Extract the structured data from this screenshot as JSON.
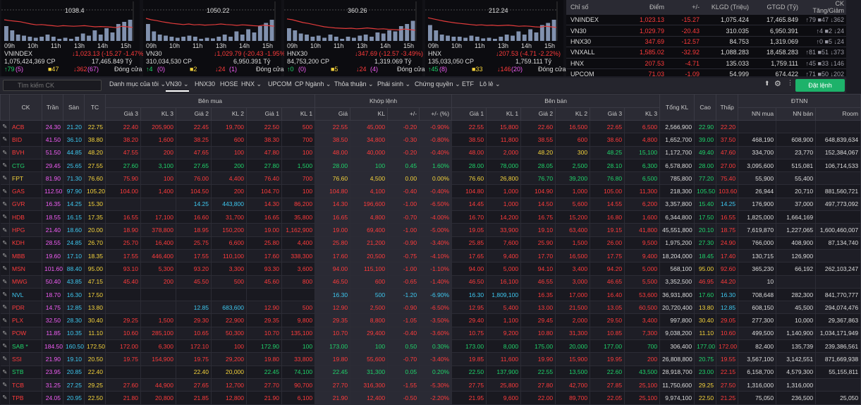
{
  "panels": [
    {
      "peak": "1038.4",
      "name": "VNINDEX",
      "value": "↓1,023.13 (-15.27 -1.47%)",
      "volume": "1,075,424,369 CP",
      "turnover": "17,465.849 Tỷ",
      "up": "↑79",
      "ceil": "(5)",
      "flat": "■47",
      "down": "↓362",
      "floor": "(67)",
      "status": "Đóng cửa",
      "times": [
        "09h",
        "10h",
        "11h",
        "13h",
        "14h",
        "15h"
      ],
      "line": [
        0.45,
        0.48,
        0.5,
        0.52,
        0.56,
        0.6,
        0.63,
        0.62,
        0.64,
        0.66,
        0.68,
        0.66,
        0.67,
        0.68,
        0.67,
        0.66,
        0.68,
        0.7,
        0.69,
        0.7,
        0.71,
        0.73,
        0.68,
        0.7,
        0.72
      ],
      "vol": [
        0.7,
        0.5,
        0.3,
        0.25,
        0.2,
        0.15,
        0.2,
        0.3,
        0.2,
        0.1,
        0.15,
        0.1,
        0.2,
        0.35,
        0.25,
        0.5,
        0.3,
        0.6,
        0.4,
        0.8,
        0.9,
        1.0
      ]
    },
    {
      "peak": "1050.22",
      "name": "VN30",
      "value": "↓1,029.79 (-20.43 -1.95%)",
      "volume": "310,034,530 CP",
      "turnover": "6,950.391 Tỷ",
      "up": "↑4",
      "ceil": "(0)",
      "flat": "■2",
      "down": "↓24",
      "floor": "(1)",
      "status": "Đóng cửa",
      "times": [
        "09h",
        "10h",
        "11h",
        "13h",
        "14h",
        "15h"
      ],
      "line": [
        0.4,
        0.45,
        0.48,
        0.52,
        0.55,
        0.58,
        0.6,
        0.62,
        0.6,
        0.63,
        0.62,
        0.64,
        0.63,
        0.62,
        0.6,
        0.62,
        0.63,
        0.65,
        0.63,
        0.64,
        0.66,
        0.67,
        0.64,
        0.66,
        0.68
      ],
      "vol": [
        0.8,
        0.45,
        0.3,
        0.25,
        0.2,
        0.15,
        0.2,
        0.25,
        0.2,
        0.1,
        0.15,
        0.12,
        0.2,
        0.3,
        0.2,
        0.45,
        0.3,
        0.55,
        0.4,
        0.7,
        0.85,
        1.0
      ]
    },
    {
      "peak": "360.26",
      "name": "HNX30",
      "value": "↓347.69 (-12.57 -3.49%)",
      "volume": "84,753,200 CP",
      "turnover": "1,319.069 Tỷ",
      "up": "↑0",
      "ceil": "(0)",
      "flat": "■5",
      "down": "↓24",
      "floor": "(4)",
      "status": "Đóng cửa",
      "times": [
        "09h",
        "10h",
        "11h",
        "13h",
        "14h",
        "15h"
      ],
      "line": [
        0.42,
        0.45,
        0.5,
        0.55,
        0.58,
        0.62,
        0.66,
        0.7,
        0.72,
        0.74,
        0.75,
        0.76,
        0.75,
        0.77,
        0.76,
        0.74,
        0.76,
        0.78,
        0.77,
        0.79,
        0.8,
        0.81,
        0.78,
        0.8,
        0.82
      ],
      "vol": [
        0.6,
        0.5,
        0.35,
        0.3,
        0.2,
        0.25,
        0.15,
        0.3,
        0.2,
        0.1,
        0.2,
        0.15,
        0.25,
        0.3,
        0.2,
        0.4,
        0.35,
        0.5,
        0.45,
        0.7,
        0.8,
        0.95
      ]
    },
    {
      "peak": "212.24",
      "name": "HNX",
      "value": "↓207.53 (-4.71 -2.22%)",
      "volume": "135,033,050 CP",
      "turnover": "1,759.111 Tỷ",
      "up": "↑45",
      "ceil": "(8)",
      "flat": "■33",
      "down": "↓146",
      "floor": "(20)",
      "status": "Đóng cửa",
      "times": [
        "09h",
        "10h",
        "11h",
        "13h",
        "14h",
        "15h"
      ],
      "line": [
        0.38,
        0.42,
        0.46,
        0.5,
        0.53,
        0.56,
        0.58,
        0.6,
        0.62,
        0.64,
        0.63,
        0.65,
        0.64,
        0.66,
        0.65,
        0.64,
        0.66,
        0.68,
        0.67,
        0.68,
        0.7,
        0.71,
        0.68,
        0.7,
        0.72
      ],
      "vol": [
        0.75,
        0.5,
        0.3,
        0.25,
        0.2,
        0.2,
        0.15,
        0.25,
        0.2,
        0.12,
        0.15,
        0.1,
        0.2,
        0.3,
        0.25,
        0.45,
        0.3,
        0.55,
        0.4,
        0.75,
        0.85,
        1.0
      ]
    }
  ],
  "summary": {
    "headers": [
      "Chỉ số",
      "Điểm",
      "+/-",
      "KLGD (Triệu)",
      "GTGD (Tỷ)",
      "CK Tăng/Giảm"
    ],
    "rows": [
      [
        "VNINDEX",
        "1,023.13",
        "-15.27",
        "1,075.424",
        "17,465.849",
        "↑79 ■47 ↓362"
      ],
      [
        "VN30",
        "1,029.79",
        "-20.43",
        "310.035",
        "6,950.391",
        "↑4 ■2 ↓24"
      ],
      [
        "HNX30",
        "347.69",
        "-12.57",
        "84.753",
        "1,319.069",
        "↑0 ■5 ↓24"
      ],
      [
        "VNXALL",
        "1,585.02",
        "-32.92",
        "1,088.283",
        "18,458.283",
        "↑81 ■51 ↓373"
      ],
      [
        "HNX",
        "207.53",
        "-4.71",
        "135.033",
        "1,759.111",
        "↑45 ■33 ↓146"
      ],
      [
        "UPCOM",
        "71.03",
        "-1.09",
        "54.999",
        "674.422",
        "↑71 ■50 ↓202"
      ]
    ]
  },
  "toolbar": {
    "search_placeholder": "Tìm kiếm CK",
    "tabs": [
      "Danh mục của tôi ⌄",
      "VN30 ⌄",
      "HNX30",
      "HOSE",
      "HNX ⌄",
      "UPCOM",
      "CP Ngành ⌄",
      "Thỏa thuận ⌄",
      "Phái sinh ⌄",
      "Chứng quyền ⌄",
      "ETF",
      "Lô lẻ ⌄"
    ],
    "order_label": "Đặt lệnh"
  },
  "board": {
    "group_headers": [
      "CK",
      "Trần",
      "Sàn",
      "TC",
      "Bên mua",
      "Khớp lệnh",
      "Bên bán",
      "Tổng KL",
      "Cao",
      "Thấp",
      "ĐTNN"
    ],
    "sub_headers": [
      "Giá 3",
      "KL 3",
      "Giá 2",
      "KL 2",
      "Giá 1",
      "KL 1",
      "Giá",
      "KL",
      "+/-",
      "+/- (%)",
      "Giá 1",
      "KL 1",
      "Giá 2",
      "KL 2",
      "Giá 3",
      "KL 3",
      "NN mua",
      "NN bán",
      "Room"
    ],
    "rows": [
      [
        "ACB",
        "24.30",
        "21.20",
        "22.75",
        "22.40",
        "205,900",
        "22.45",
        "19,700",
        "22.50",
        "500",
        "22.55",
        "45,000",
        "-0.20",
        "-0.90%",
        "22.55",
        "15,800",
        "22.60",
        "16,500",
        "22.65",
        "6,500",
        "2,566,900",
        "22.90",
        "22.20",
        "",
        "",
        ""
      ],
      [
        "BID",
        "41.50",
        "36.10",
        "38.80",
        "38.20",
        "1,600",
        "38.25",
        "600",
        "38.30",
        "700",
        "38.50",
        "34,800",
        "-0.30",
        "-0.80%",
        "38.50",
        "11,800",
        "38.55",
        "600",
        "38.60",
        "4,800",
        "1,652,700",
        "39.00",
        "37.50",
        "468,190",
        "608,900",
        "648,839,634"
      ],
      [
        "BVH",
        "51.50",
        "44.85",
        "48.20",
        "47.55",
        "200",
        "47.65",
        "100",
        "47.80",
        "100",
        "48.00",
        "40,000",
        "-0.20",
        "-0.40%",
        "48.00",
        "2,000",
        "48.20",
        "300",
        "48.25",
        "15,100",
        "1,172,700",
        "49.40",
        "47.60",
        "334,700",
        "23,770",
        "152,384,067"
      ],
      [
        "CTG",
        "29.45",
        "25.65",
        "27.55",
        "27.60",
        "3,100",
        "27.65",
        "200",
        "27.80",
        "1,500",
        "28.00",
        "100",
        "0.45",
        "1.60%",
        "28.00",
        "78,000",
        "28.05",
        "2,500",
        "28.10",
        "6,300",
        "6,578,800",
        "28.00",
        "27.00",
        "3,095,600",
        "515,081",
        "106,714,533"
      ],
      [
        "FPT",
        "81.90",
        "71.30",
        "76.60",
        "75.90",
        "100",
        "76.00",
        "4,400",
        "76.40",
        "700",
        "76.60",
        "4,500",
        "0.00",
        "0.00%",
        "76.60",
        "26,800",
        "76.70",
        "39,200",
        "76.80",
        "6,500",
        "785,800",
        "77.20",
        "75.40",
        "55,900",
        "55,400",
        ""
      ],
      [
        "GAS",
        "112.50",
        "97.90",
        "105.20",
        "104.00",
        "1,400",
        "104.50",
        "200",
        "104.70",
        "100",
        "104.80",
        "4,100",
        "-0.40",
        "-0.40%",
        "104.80",
        "1,000",
        "104.90",
        "1,000",
        "105.00",
        "11,300",
        "218,300",
        "105.50",
        "103.60",
        "26,944",
        "20,710",
        "881,560,721"
      ],
      [
        "GVR",
        "16.35",
        "14.25",
        "15.30",
        "",
        "",
        "14.25",
        "443,800",
        "14.30",
        "86,200",
        "14.30",
        "196,600",
        "-1.00",
        "-6.50%",
        "14.45",
        "1,000",
        "14.50",
        "5,600",
        "14.55",
        "6,200",
        "3,357,800",
        "15.40",
        "14.25",
        "176,900",
        "37,000",
        "497,773,092"
      ],
      [
        "HDB",
        "18.55",
        "16.15",
        "17.35",
        "16.55",
        "17,100",
        "16.60",
        "31,700",
        "16.65",
        "35,800",
        "16.65",
        "4,800",
        "-0.70",
        "-4.00%",
        "16.70",
        "14,200",
        "16.75",
        "15,200",
        "16.80",
        "1,600",
        "6,344,800",
        "17.50",
        "16.55",
        "1,825,000",
        "1,664,169",
        ""
      ],
      [
        "HPG",
        "21.40",
        "18.60",
        "20.00",
        "18.90",
        "378,800",
        "18.95",
        "150,200",
        "19.00",
        "1,162,900",
        "19.00",
        "69,400",
        "-1.00",
        "-5.00%",
        "19.05",
        "33,900",
        "19.10",
        "63,400",
        "19.15",
        "41,800",
        "45,551,800",
        "20.10",
        "18.75",
        "7,619,870",
        "1,227,065",
        "1,600,460,007"
      ],
      [
        "KDH",
        "28.55",
        "24.85",
        "26.70",
        "25.70",
        "16,400",
        "25.75",
        "6,600",
        "25.80",
        "4,400",
        "25.80",
        "21,200",
        "-0.90",
        "-3.40%",
        "25.85",
        "7,600",
        "25.90",
        "1,500",
        "26.00",
        "9,500",
        "1,975,200",
        "27.30",
        "24.90",
        "766,000",
        "408,900",
        "87,134,740"
      ],
      [
        "MBB",
        "19.60",
        "17.10",
        "18.35",
        "17.55",
        "446,400",
        "17.55",
        "110,100",
        "17.60",
        "338,300",
        "17.60",
        "20,500",
        "-0.75",
        "-4.10%",
        "17.65",
        "9,400",
        "17.70",
        "16,500",
        "17.75",
        "9,400",
        "18,204,000",
        "18.45",
        "17.40",
        "130,715",
        "126,900",
        ""
      ],
      [
        "MSN",
        "101.60",
        "88.40",
        "95.00",
        "93.10",
        "5,300",
        "93.20",
        "3,300",
        "93.30",
        "3,600",
        "94.00",
        "115,100",
        "-1.00",
        "-1.10%",
        "94.00",
        "5,000",
        "94.10",
        "3,400",
        "94.20",
        "5,000",
        "568,100",
        "95.00",
        "92.60",
        "365,230",
        "66,192",
        "262,103,247"
      ],
      [
        "MWG",
        "50.40",
        "43.85",
        "47.15",
        "45.40",
        "200",
        "45.50",
        "500",
        "45.60",
        "800",
        "46.50",
        "600",
        "-0.65",
        "-1.40%",
        "46.50",
        "16,100",
        "46.55",
        "3,000",
        "46.65",
        "5,500",
        "3,352,500",
        "46.95",
        "44.20",
        "10",
        "",
        ""
      ],
      [
        "NVL",
        "18.70",
        "16.30",
        "17.50",
        "",
        "",
        "",
        "",
        "",
        "",
        "16.30",
        "500",
        "-1.20",
        "-6.90%",
        "16.30",
        "1,809,100",
        "16.35",
        "17,000",
        "16.40",
        "53,600",
        "36,931,800",
        "17.60",
        "16.30",
        "708,648",
        "282,300",
        "841,770,777"
      ],
      [
        "PDR",
        "14.75",
        "12.85",
        "13.80",
        "",
        "",
        "12.85",
        "683,600",
        "12.90",
        "500",
        "12.90",
        "2,500",
        "-0.90",
        "-6.50%",
        "12.95",
        "5,400",
        "13.00",
        "21,500",
        "13.05",
        "60,500",
        "20,720,400",
        "13.80",
        "12.85",
        "608,150",
        "45,500",
        "294,074,476"
      ],
      [
        "PLX",
        "32.50",
        "28.30",
        "30.40",
        "29.25",
        "1,500",
        "29.30",
        "22,900",
        "29.35",
        "9,800",
        "29.35",
        "8,800",
        "-1.05",
        "-3.50%",
        "29.40",
        "1,100",
        "29.45",
        "2,000",
        "29.50",
        "3,400",
        "997,800",
        "30.40",
        "29.05",
        "277,300",
        "10,000",
        "29,367,863"
      ],
      [
        "POW",
        "11.85",
        "10.35",
        "11.10",
        "10.60",
        "285,100",
        "10.65",
        "50,300",
        "10.70",
        "135,100",
        "10.70",
        "29,400",
        "-0.40",
        "-3.60%",
        "10.75",
        "9,200",
        "10.80",
        "31,300",
        "10.85",
        "7,300",
        "9,038,200",
        "11.10",
        "10.60",
        "499,500",
        "1,140,900",
        "1,034,171,949"
      ],
      [
        "SAB *",
        "184.50",
        "160.50",
        "172.50",
        "172.00",
        "6,300",
        "172.10",
        "100",
        "172.90",
        "100",
        "173.00",
        "100",
        "0.50",
        "0.30%",
        "173.00",
        "8,000",
        "175.00",
        "20,000",
        "177.00",
        "700",
        "306,400",
        "177.00",
        "172.00",
        "82,400",
        "135,739",
        "239,386,561"
      ],
      [
        "SSI",
        "21.90",
        "19.10",
        "20.50",
        "19.75",
        "154,900",
        "19.75",
        "29,200",
        "19.80",
        "33,800",
        "19.80",
        "55,600",
        "-0.70",
        "-3.40%",
        "19.85",
        "11,600",
        "19.90",
        "15,900",
        "19.95",
        "200",
        "26,808,800",
        "20.75",
        "19.55",
        "3,567,100",
        "3,142,551",
        "871,669,938"
      ],
      [
        "STB",
        "23.95",
        "20.85",
        "22.40",
        "",
        "",
        "22.40",
        "20,000",
        "22.45",
        "74,100",
        "22.45",
        "31,300",
        "0.05",
        "0.20%",
        "22.50",
        "137,900",
        "22.55",
        "13,500",
        "22.60",
        "43,500",
        "28,918,700",
        "23.00",
        "22.15",
        "6,158,700",
        "4,579,300",
        "55,155,811"
      ],
      [
        "TCB",
        "31.25",
        "27.25",
        "29.25",
        "27.60",
        "44,900",
        "27.65",
        "12,700",
        "27.70",
        "90,700",
        "27.70",
        "316,300",
        "-1.55",
        "-5.30%",
        "27.75",
        "25,800",
        "27.80",
        "42,700",
        "27.85",
        "25,100",
        "11,750,600",
        "29.25",
        "27.50",
        "1,316,000",
        "1,316,000",
        ""
      ],
      [
        "TPB",
        "24.05",
        "20.95",
        "22.50",
        "21.80",
        "20,800",
        "21.85",
        "12,800",
        "21.90",
        "6,100",
        "21.90",
        "12,400",
        "-0.50",
        "-2.20%",
        "21.95",
        "9,600",
        "22.00",
        "89,700",
        "22.05",
        "25,100",
        "9,974,100",
        "22.50",
        "21.25",
        "75,050",
        "236,500",
        "25,050"
      ]
    ]
  }
}
